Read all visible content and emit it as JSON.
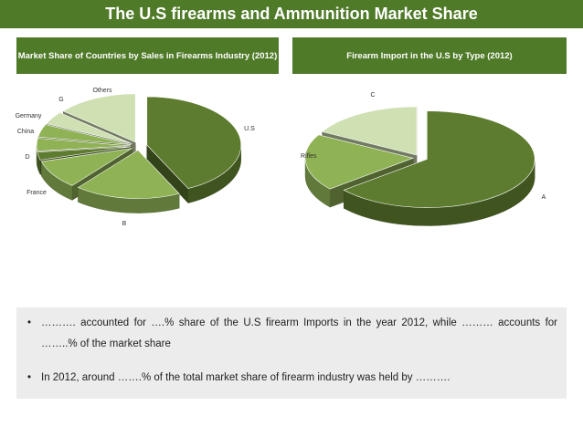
{
  "title": "The U.S firearms and Ammunition Market Share",
  "left_panel": {
    "title": "Market Share of Countries by Sales in Firearms Industry (2012)"
  },
  "right_panel": {
    "title": "Firearm Import in the U.S by Type (2012)"
  },
  "colors": {
    "header_bg": "#4f7a28",
    "dark_green": "#5e7c2f",
    "light_green": "#8fb255",
    "pale_green": "#cfe0b3",
    "bullet_bg": "#ececec"
  },
  "chart_data": [
    {
      "type": "pie",
      "title": "Market Share of Countries by Sales in Firearms Industry (2012)",
      "categories": [
        "U.S",
        "B",
        "France",
        "D",
        "China",
        "Germany",
        "G",
        "Others"
      ],
      "values": [
        40,
        17,
        9,
        2.5,
        4,
        4,
        4,
        13
      ],
      "three_d": true,
      "exploded": true
    },
    {
      "type": "pie",
      "title": "Firearm Import in the U.S by Type (2012)",
      "categories": [
        "A",
        "Rifles",
        "C"
      ],
      "values": [
        64,
        19,
        17
      ],
      "three_d": true,
      "exploded": true
    }
  ],
  "bullets": [
    {
      "marker": "•",
      "text": "………. accounted for ….% share of the U.S firearm Imports in the year 2012, while ……… accounts for ……..% of the market share"
    },
    {
      "marker": "•",
      "text": "In 2012, around …….% of the total market share of firearm industry was held by ………."
    }
  ]
}
